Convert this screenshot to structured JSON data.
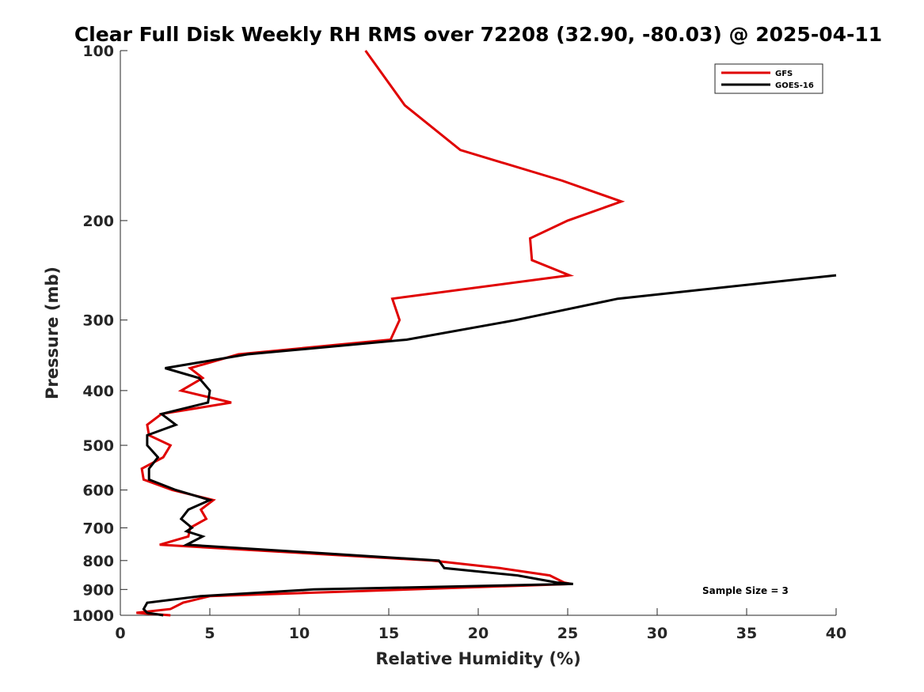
{
  "chart_data": {
    "type": "line",
    "title": "Clear Full Disk Weekly RH RMS over 72208 (32.90, -80.03) @ 2025-04-11",
    "xlabel": "Relative Humidity (%)",
    "ylabel": "Pressure (mb)",
    "xlim": [
      0,
      40
    ],
    "ylim": [
      100,
      1000
    ],
    "yscale": "log",
    "yreversed": true,
    "x_ticks": [
      0,
      5,
      10,
      15,
      20,
      25,
      30,
      35,
      40
    ],
    "y_ticks": [
      100,
      200,
      300,
      400,
      500,
      600,
      700,
      800,
      900,
      1000
    ],
    "grid": false,
    "legend_position": "top-right",
    "annotation": "Sample Size = 3",
    "series": [
      {
        "name": "GFS",
        "color": "#e00000",
        "points": [
          [
            13.7,
            100
          ],
          [
            15.9,
            125
          ],
          [
            19.0,
            150
          ],
          [
            24.7,
            170
          ],
          [
            28.0,
            185
          ],
          [
            25.0,
            200
          ],
          [
            22.9,
            215
          ],
          [
            23.0,
            235
          ],
          [
            25.1,
            250
          ],
          [
            15.2,
            275
          ],
          [
            15.6,
            300
          ],
          [
            15.1,
            325
          ],
          [
            6.6,
            345
          ],
          [
            3.9,
            365
          ],
          [
            4.6,
            380
          ],
          [
            3.4,
            400
          ],
          [
            6.2,
            420
          ],
          [
            2.3,
            440
          ],
          [
            1.5,
            460
          ],
          [
            1.6,
            480
          ],
          [
            2.8,
            500
          ],
          [
            2.4,
            525
          ],
          [
            1.2,
            550
          ],
          [
            1.3,
            575
          ],
          [
            2.9,
            600
          ],
          [
            5.2,
            625
          ],
          [
            4.5,
            650
          ],
          [
            4.8,
            675
          ],
          [
            3.9,
            700
          ],
          [
            3.8,
            725
          ],
          [
            2.2,
            750
          ],
          [
            17.4,
            800
          ],
          [
            21.2,
            825
          ],
          [
            24.0,
            850
          ],
          [
            24.8,
            875
          ],
          [
            25.2,
            880
          ],
          [
            5.0,
            925
          ],
          [
            3.5,
            950
          ],
          [
            2.8,
            975
          ],
          [
            0.9,
            990
          ],
          [
            2.8,
            1000
          ]
        ]
      },
      {
        "name": "GOES-16",
        "color": "#000000",
        "points": [
          [
            40.0,
            250
          ],
          [
            27.8,
            275
          ],
          [
            22.1,
            300
          ],
          [
            16.0,
            325
          ],
          [
            7.1,
            345
          ],
          [
            2.5,
            365
          ],
          [
            4.4,
            380
          ],
          [
            5.0,
            400
          ],
          [
            4.9,
            420
          ],
          [
            2.3,
            440
          ],
          [
            3.1,
            460
          ],
          [
            1.5,
            480
          ],
          [
            1.5,
            500
          ],
          [
            2.1,
            525
          ],
          [
            1.6,
            550
          ],
          [
            1.6,
            575
          ],
          [
            3.1,
            600
          ],
          [
            5.0,
            625
          ],
          [
            3.8,
            650
          ],
          [
            3.4,
            675
          ],
          [
            4.0,
            700
          ],
          [
            3.7,
            710
          ],
          [
            4.6,
            725
          ],
          [
            3.7,
            750
          ],
          [
            17.8,
            800
          ],
          [
            18.1,
            825
          ],
          [
            22.2,
            850
          ],
          [
            24.4,
            875
          ],
          [
            25.3,
            880
          ],
          [
            10.8,
            900
          ],
          [
            4.5,
            925
          ],
          [
            1.5,
            950
          ],
          [
            1.3,
            975
          ],
          [
            1.5,
            990
          ],
          [
            2.4,
            1000
          ]
        ]
      }
    ]
  }
}
